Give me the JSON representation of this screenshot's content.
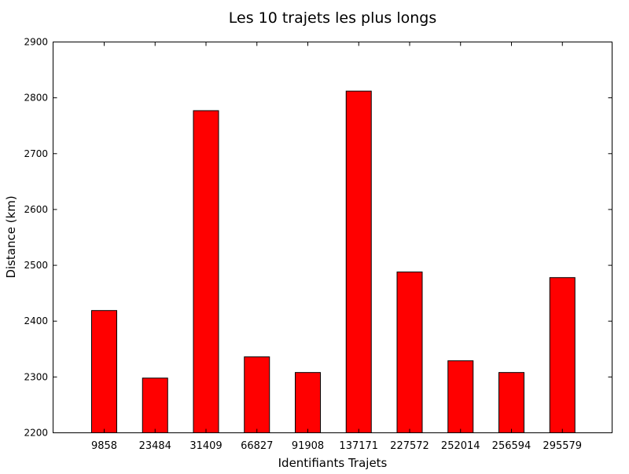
{
  "chart_data": {
    "type": "bar",
    "title": "Les 10 trajets les plus longs",
    "xlabel": "Identifiants Trajets",
    "ylabel": "Distance (km)",
    "categories": [
      "9858",
      "23484",
      "31409",
      "66827",
      "91908",
      "137171",
      "227572",
      "252014",
      "256594",
      "295579"
    ],
    "values": [
      2419,
      2298,
      2777,
      2336,
      2308,
      2812,
      2488,
      2329,
      2308,
      2478
    ],
    "ylim": [
      2200,
      2900
    ],
    "yticks": [
      2200,
      2300,
      2400,
      2500,
      2600,
      2700,
      2800,
      2900
    ],
    "bar_color": "#ff0000",
    "grid": false,
    "legend": "none"
  }
}
